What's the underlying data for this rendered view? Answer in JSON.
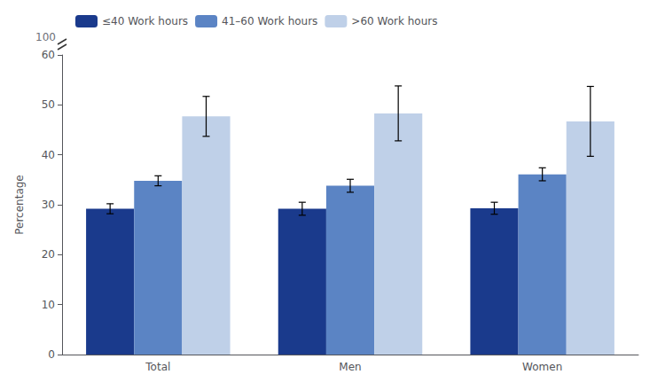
{
  "chart_data": {
    "type": "bar",
    "categories": [
      "Total",
      "Men",
      "Women"
    ],
    "series": [
      {
        "name": "≤40 Work hours",
        "color": "#1a3a8c",
        "values": [
          29.2,
          29.2,
          29.3
        ],
        "errors": [
          1.0,
          1.3,
          1.2
        ]
      },
      {
        "name": "41–60 Work hours",
        "color": "#5b84c4",
        "values": [
          34.8,
          33.8,
          36.1
        ],
        "errors": [
          1.0,
          1.3,
          1.3
        ]
      },
      {
        "name": ">60 Work hours",
        "color": "#bfd0e8",
        "values": [
          47.7,
          48.3,
          46.7
        ],
        "errors": [
          4.0,
          5.5,
          7.0
        ]
      }
    ],
    "ylabel": "Percentage",
    "ylim": [
      0,
      60
    ],
    "yticks": [
      0,
      10,
      20,
      30,
      40,
      50,
      60
    ],
    "grid": false,
    "legend": "upper left",
    "annotations": [
      "100"
    ]
  }
}
